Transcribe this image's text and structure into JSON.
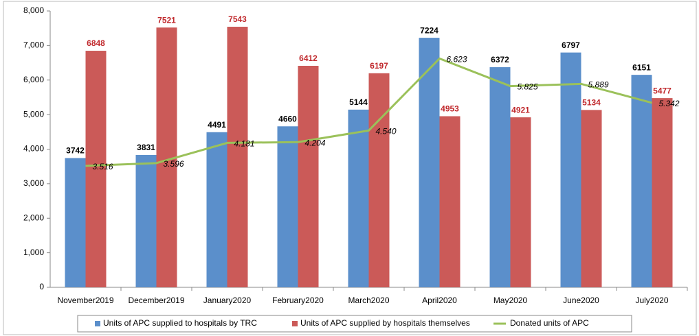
{
  "chart_data": {
    "type": "bar",
    "categories": [
      "November2019",
      "December2019",
      "January2020",
      "February2020",
      "March2020",
      "April2020",
      "May2020",
      "June2020",
      "July2020"
    ],
    "series": [
      {
        "name": "Units of APC supplied to hospitals by TRC",
        "type": "bar",
        "color": "#5b8fcb",
        "label_color": "#000000",
        "values": [
          3742,
          3831,
          4491,
          4660,
          5144,
          7224,
          6372,
          6797,
          6151
        ]
      },
      {
        "name": "Units of APC supplied by hospitals themselves",
        "type": "bar",
        "color": "#cb5a58",
        "label_color": "#c0282c",
        "values": [
          6848,
          7521,
          7543,
          6412,
          6197,
          4953,
          4921,
          5134,
          5477
        ]
      },
      {
        "name": "Donated units of APC",
        "type": "line",
        "color": "#9bc15a",
        "label_color": "#000000",
        "values": [
          3516,
          3596,
          4181,
          4204,
          4540,
          6623,
          5825,
          5889,
          5342
        ],
        "value_labels": [
          "3.516",
          "3.596",
          "4.181",
          "4.204",
          "4.540",
          "6.623",
          "5.825",
          "5.889",
          "5.342"
        ]
      }
    ],
    "ylim": [
      0,
      8000
    ],
    "yticks": [
      0,
      {
        "value": 1000,
        "label": "1,000"
      },
      {
        "value": 2000,
        "label": "2,000"
      },
      {
        "value": 3000,
        "label": "3,000"
      },
      {
        "value": 4000,
        "label": "4,000"
      },
      {
        "value": 5000,
        "label": "5,000"
      },
      {
        "value": 6000,
        "label": "6,000"
      },
      {
        "value": 7000,
        "label": "7,000"
      },
      {
        "value": 8000,
        "label": "8,000"
      }
    ],
    "grid": false,
    "legend": "bottom"
  }
}
